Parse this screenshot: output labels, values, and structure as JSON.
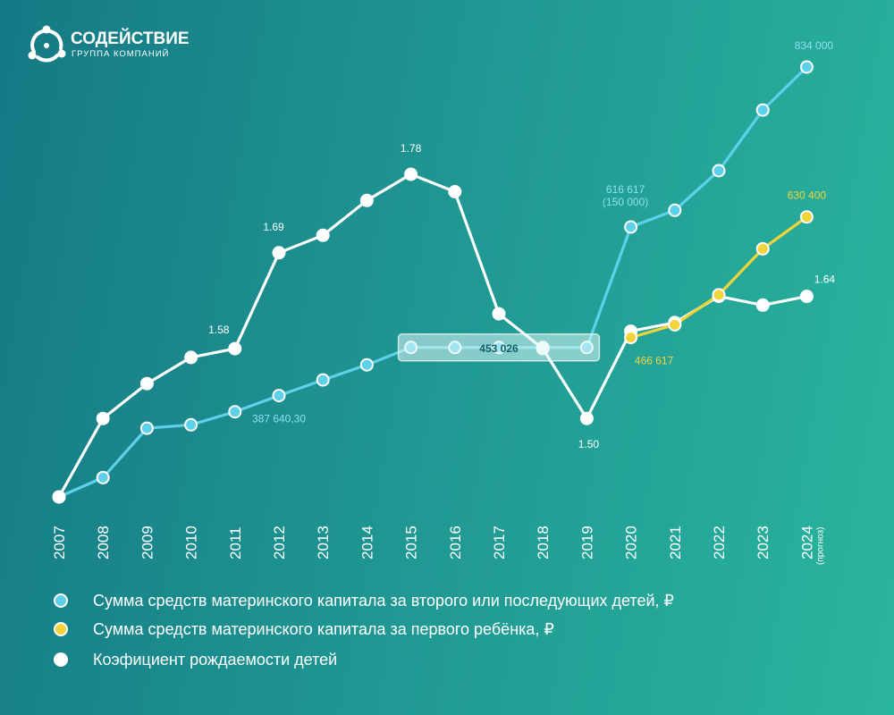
{
  "brand": {
    "name": "СОДЕЙСТВИЕ",
    "tagline": "ГРУППА КОМПАНИЙ"
  },
  "colors": {
    "background_start": "#157985",
    "background_end": "#2ab59e",
    "second_child": "#5fd0ea",
    "first_child": "#f2d43a",
    "birth_rate": "#ffffff"
  },
  "chart_data": {
    "type": "line",
    "categories": [
      "2007",
      "2008",
      "2009",
      "2010",
      "2011",
      "2012",
      "2013",
      "2014",
      "2015",
      "2016",
      "2017",
      "2018",
      "2019",
      "2020",
      "2021",
      "2022",
      "2023",
      "2024"
    ],
    "category_note": {
      "2024": "(прогноз)"
    },
    "series": [
      {
        "name": "Сумма средств материнского капитала за второго или последующих детей, ₽",
        "key": "second_child",
        "axis": "money",
        "values": [
          250000,
          276250,
          343378.8,
          348000,
          365698.4,
          387640.3,
          408960.5,
          429408.5,
          453026,
          453026,
          453026,
          453026,
          453026,
          616617,
          639431.77,
          693144.1,
          775628,
          834000
        ]
      },
      {
        "name": "Сумма средств материнского капитала за первого ребёнка, ₽",
        "key": "first_child",
        "axis": "money",
        "values": [
          null,
          null,
          null,
          null,
          null,
          null,
          null,
          null,
          null,
          null,
          null,
          null,
          null,
          466617,
          483881.83,
          524527.9,
          587000,
          630400
        ]
      },
      {
        "name": "Коэфициент рождаемости детей",
        "key": "birth_rate",
        "axis": "rate",
        "values": [
          1.41,
          1.5,
          1.54,
          1.57,
          1.58,
          1.69,
          1.71,
          1.75,
          1.78,
          1.76,
          1.62,
          1.58,
          1.5,
          1.6,
          1.61,
          1.64,
          1.63,
          1.64
        ]
      }
    ],
    "annotations": [
      {
        "series": "second_child",
        "category": "2012",
        "text": "387 640,30"
      },
      {
        "series": "second_child",
        "category": "2017",
        "text": "453 026",
        "note": "highlighted 2015–2019"
      },
      {
        "series": "second_child",
        "category": "2020",
        "text": "616 617",
        "text2": "(150 000)"
      },
      {
        "series": "second_child",
        "category": "2024",
        "text": "834 000"
      },
      {
        "series": "first_child",
        "category": "2020",
        "text": "466 617"
      },
      {
        "series": "first_child",
        "category": "2024",
        "text": "630 400"
      },
      {
        "series": "birth_rate",
        "category": "2011",
        "text": "1.58"
      },
      {
        "series": "birth_rate",
        "category": "2012",
        "text": "1.69"
      },
      {
        "series": "birth_rate",
        "category": "2015",
        "text": "1.78"
      },
      {
        "series": "birth_rate",
        "category": "2019",
        "text": "1.50"
      },
      {
        "series": "birth_rate",
        "category": "2024",
        "text": "1.64"
      }
    ],
    "highlight_range": [
      "2015",
      "2019"
    ],
    "money_axis": {
      "min": 250000,
      "max": 834000
    },
    "rate_axis": {
      "min": 1.41,
      "max": 1.78
    },
    "grid": false,
    "legend_position": "bottom-left",
    "x_tick_orientation": "vertical"
  }
}
